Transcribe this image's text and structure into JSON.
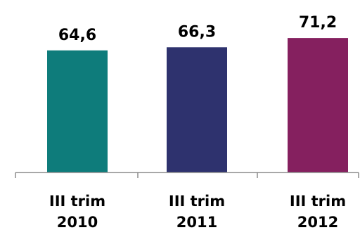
{
  "chart_data": {
    "type": "bar",
    "categories": [
      [
        "III trim",
        "2010"
      ],
      [
        "III trim",
        "2011"
      ],
      [
        "III trim",
        "2012"
      ]
    ],
    "values": [
      64.6,
      66.3,
      71.2
    ],
    "value_labels": [
      "64,6",
      "66,3",
      "71,2"
    ],
    "colors": [
      "#0e7c7b",
      "#2e326e",
      "#85205f"
    ],
    "title": "",
    "xlabel": "",
    "ylabel": "",
    "ylim": [
      0,
      80
    ],
    "grid": false,
    "legend": "none"
  }
}
